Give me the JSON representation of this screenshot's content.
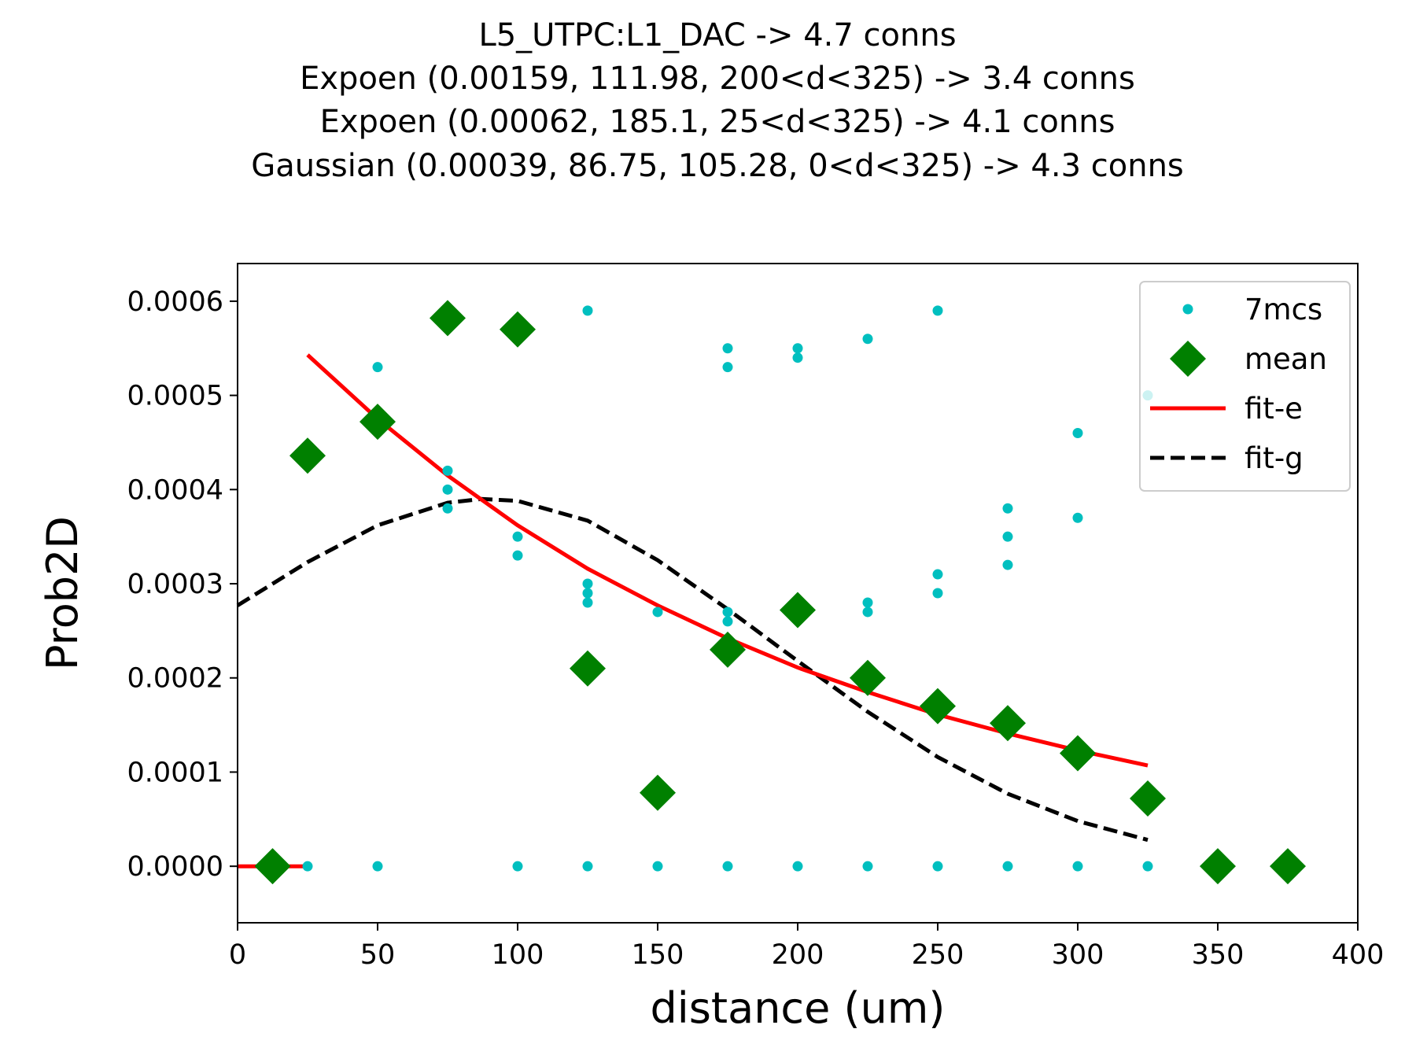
{
  "title_lines": [
    "L5_UTPC:L1_DAC -> 4.7 conns",
    "Expoen (0.00159, 111.98, 200<d<325) -> 3.4 conns",
    "Expoen (0.00062, 185.1, 25<d<325) -> 4.1 conns",
    "Gaussian (0.00039, 86.75, 105.28, 0<d<325) -> 4.3 conns"
  ],
  "colors": {
    "points": "#00bfbf",
    "mean": "#008000",
    "fit_e": "#ff0000",
    "fit_g": "#000000"
  },
  "chart_data": {
    "type": "scatter",
    "xlabel": "distance (um)",
    "ylabel": "Prob2D",
    "xlim": [
      0,
      400
    ],
    "ylim": [
      -6e-05,
      0.00064
    ],
    "x_ticks": [
      0,
      50,
      100,
      150,
      200,
      250,
      300,
      350,
      400
    ],
    "x_tick_labels": [
      "0",
      "50",
      "100",
      "150",
      "200",
      "250",
      "300",
      "350",
      "400"
    ],
    "y_ticks": [
      0,
      0.0001,
      0.0002,
      0.0003,
      0.0004,
      0.0005,
      0.0006
    ],
    "y_tick_labels": [
      "0.0000",
      "0.0001",
      "0.0002",
      "0.0003",
      "0.0004",
      "0.0005",
      "0.0006"
    ],
    "grid": false,
    "legend_position": "top-right",
    "series": [
      {
        "name": "7mcs",
        "kind": "points",
        "points": [
          [
            25,
            0
          ],
          [
            50,
            0.00053
          ],
          [
            50,
            0
          ],
          [
            75,
            0.00042
          ],
          [
            75,
            0.0004
          ],
          [
            75,
            0.00038
          ],
          [
            100,
            0.00035
          ],
          [
            100,
            0.00033
          ],
          [
            100,
            0
          ],
          [
            125,
            0.00059
          ],
          [
            125,
            0.0003
          ],
          [
            125,
            0.00029
          ],
          [
            125,
            0.00028
          ],
          [
            125,
            0
          ],
          [
            150,
            0.00027
          ],
          [
            150,
            0
          ],
          [
            175,
            0.00055
          ],
          [
            175,
            0.00053
          ],
          [
            175,
            0.00027
          ],
          [
            175,
            0.00026
          ],
          [
            175,
            0
          ],
          [
            200,
            0.00055
          ],
          [
            200,
            0.00054
          ],
          [
            200,
            0
          ],
          [
            225,
            0.00056
          ],
          [
            225,
            0.00028
          ],
          [
            225,
            0.00027
          ],
          [
            225,
            0
          ],
          [
            250,
            0.00059
          ],
          [
            250,
            0.00031
          ],
          [
            250,
            0.00029
          ],
          [
            250,
            0
          ],
          [
            275,
            0.00038
          ],
          [
            275,
            0.00035
          ],
          [
            275,
            0.00032
          ],
          [
            275,
            0
          ],
          [
            300,
            0.00046
          ],
          [
            300,
            0.00037
          ],
          [
            300,
            0
          ],
          [
            325,
            0.0005
          ],
          [
            325,
            0
          ]
        ]
      },
      {
        "name": "mean",
        "kind": "diamonds",
        "points": [
          [
            12.5,
            0
          ],
          [
            25,
            0.000436
          ],
          [
            50,
            0.000472
          ],
          [
            75,
            0.000582
          ],
          [
            100,
            0.00057
          ],
          [
            125,
            0.00021
          ],
          [
            150,
            7.8e-05
          ],
          [
            175,
            0.00023
          ],
          [
            200,
            0.000272
          ],
          [
            225,
            0.0002
          ],
          [
            250,
            0.00017
          ],
          [
            275,
            0.000152
          ],
          [
            300,
            0.00012
          ],
          [
            325,
            7.2e-05
          ],
          [
            350,
            0
          ],
          [
            375,
            0
          ]
        ]
      },
      {
        "name": "fit-e",
        "kind": "line",
        "segments": [
          [
            [
              0,
              0
            ],
            [
              25,
              0
            ]
          ],
          [
            [
              25,
              0.000543
            ],
            [
              50,
              0.000475
            ],
            [
              75,
              0.000415
            ],
            [
              100,
              0.000362
            ],
            [
              125,
              0.000316
            ],
            [
              150,
              0.000277
            ],
            [
              175,
              0.000242
            ],
            [
              200,
              0.000211
            ],
            [
              225,
              0.000185
            ],
            [
              250,
              0.000161
            ],
            [
              275,
              0.000141
            ],
            [
              300,
              0.000123
            ],
            [
              325,
              0.000107
            ]
          ]
        ]
      },
      {
        "name": "fit-g",
        "kind": "dashed",
        "segments": [
          [
            [
              0,
              0.000277
            ],
            [
              25,
              0.000323
            ],
            [
              50,
              0.000362
            ],
            [
              75,
              0.000386
            ],
            [
              87,
              0.00039
            ],
            [
              100,
              0.000388
            ],
            [
              125,
              0.000367
            ],
            [
              150,
              0.000325
            ],
            [
              175,
              0.000273
            ],
            [
              200,
              0.000218
            ],
            [
              225,
              0.000164
            ],
            [
              250,
              0.000116
            ],
            [
              275,
              7.7e-05
            ],
            [
              300,
              4.8e-05
            ],
            [
              325,
              2.8e-05
            ]
          ]
        ]
      }
    ]
  }
}
